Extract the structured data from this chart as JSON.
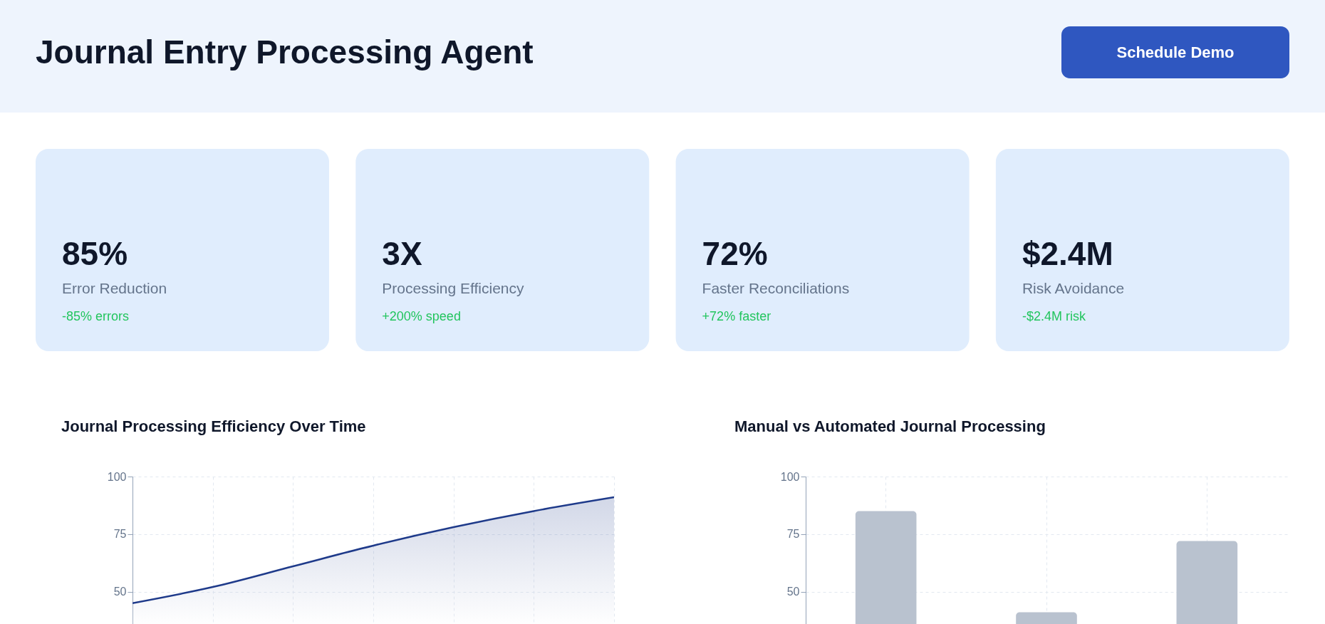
{
  "chart_data": [
    {
      "type": "other",
      "title": "Journal Entry Processing Agent",
      "annotations": [
        "Schedule Demo"
      ]
    },
    {
      "type": "other",
      "annotations": [
        "85%",
        "Error Reduction",
        "-85% errors"
      ]
    },
    {
      "type": "other",
      "annotations": [
        "3X",
        "Processing Efficiency",
        "+200% speed"
      ]
    },
    {
      "type": "other",
      "annotations": [
        "72%",
        "Faster Reconciliations",
        "+72% faster"
      ]
    },
    {
      "type": "other",
      "annotations": [
        "$2.4M",
        "Risk Avoidance",
        "-$2.4M risk"
      ]
    },
    {
      "type": "area",
      "title": "Journal Processing Efficiency Over Time",
      "categories": [
        null,
        null,
        null,
        null,
        null,
        null,
        null
      ],
      "series": [
        {
          "color": "#1e3a8a",
          "values": [
            45,
            52,
            61,
            70,
            78,
            85,
            91
          ]
        }
      ],
      "ylim": [
        35,
        100
      ],
      "yticks": [
        50,
        75,
        100
      ],
      "grid": true,
      "tick_labels": "y"
    },
    {
      "type": "bar",
      "title": "Manual vs Automated Journal Processing",
      "categories": [
        null,
        null,
        null
      ],
      "series": [
        {
          "color": "#b9c2cf",
          "values": [
            85,
            41,
            72
          ]
        }
      ],
      "ylim": [
        35,
        100
      ],
      "yticks": [
        50,
        75,
        100
      ],
      "grid": true,
      "tick_labels": "y"
    }
  ]
}
